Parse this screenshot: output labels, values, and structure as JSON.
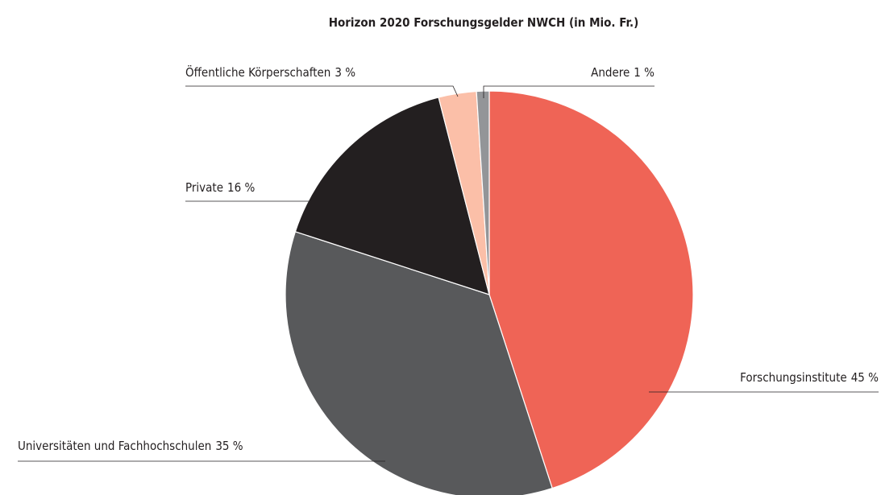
{
  "chart_data": {
    "type": "pie",
    "title": "Horizon 2020 Forschungsgelder NWCH (in Mio. Fr.)",
    "categories": [
      "Forschungsinstitute",
      "Universitäten und Fachhochschulen",
      "Private",
      "Öffentliche Körperschaften",
      "Andere"
    ],
    "values": [
      45,
      35,
      16,
      3,
      1
    ],
    "value_labels": [
      "45 %",
      "35 %",
      "16 %",
      "3 %",
      "1 %"
    ],
    "colors": [
      "#ef6456",
      "#58595b",
      "#231f20",
      "#fbbfa8",
      "#939598"
    ]
  }
}
